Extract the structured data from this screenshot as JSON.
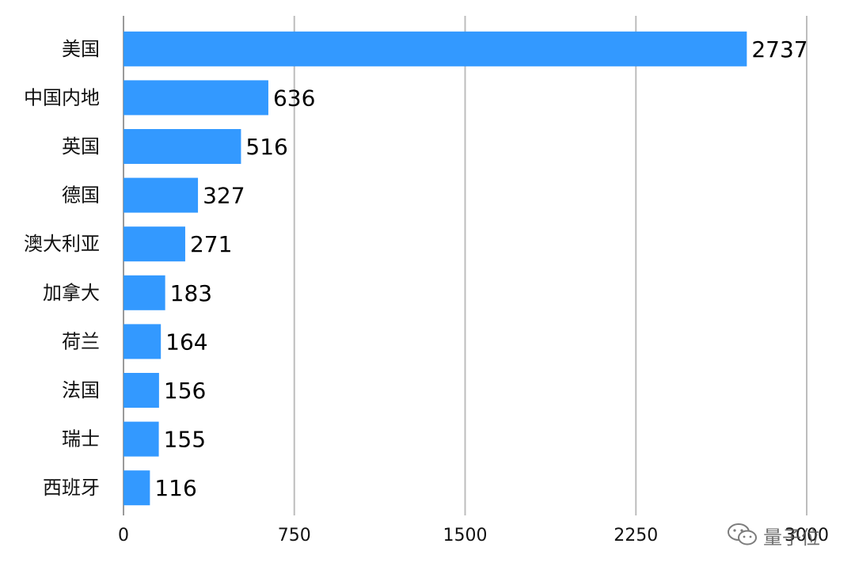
{
  "chart_data": {
    "type": "bar",
    "orientation": "horizontal",
    "categories": [
      "美国",
      "中国内地",
      "英国",
      "德国",
      "澳大利亚",
      "加拿大",
      "荷兰",
      "法国",
      "瑞士",
      "西班牙"
    ],
    "values": [
      2737,
      636,
      516,
      327,
      271,
      183,
      164,
      156,
      155,
      116
    ],
    "value_labels": [
      "2737",
      "636",
      "516",
      "327",
      "271",
      "183",
      "164",
      "156",
      "155",
      "116"
    ],
    "x_ticks": [
      "0",
      "750",
      "1500",
      "2250",
      "3000"
    ],
    "xlim": [
      0,
      3000
    ],
    "grid": "vertical",
    "bar_color": "#3399ff",
    "title": "",
    "xlabel": "",
    "ylabel": ""
  },
  "watermark": {
    "text": "量子位"
  }
}
